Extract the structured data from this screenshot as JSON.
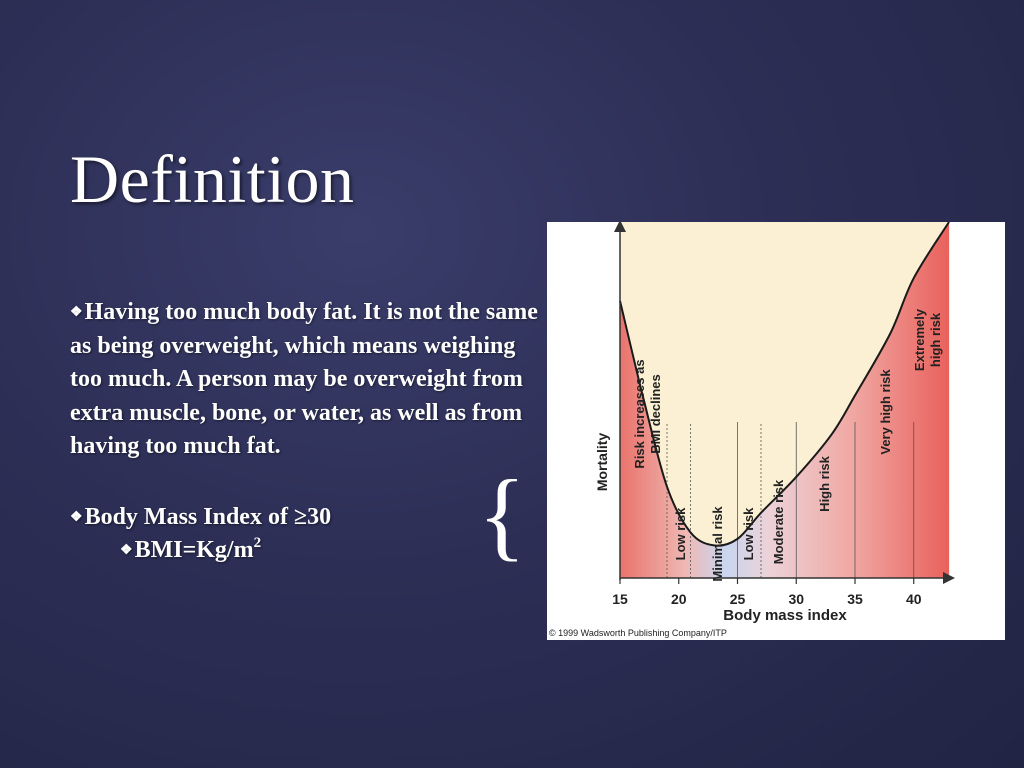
{
  "slide": {
    "title": "Definition",
    "bullets": [
      {
        "marker": "❖",
        "text": "Having too much body fat. It is not the same as being overweight, which means weighing too much. A person may be overweight from extra muscle, bone, or water, as well as from having too much fat."
      },
      {
        "marker": "❖",
        "text": "Body Mass Index of ≥30"
      },
      {
        "marker": "❖",
        "text": "BMI=Kg/m",
        "superscript": "2"
      }
    ],
    "brace": "{"
  },
  "chart_data": {
    "type": "line",
    "title": "",
    "xlabel": "Body mass index",
    "ylabel": "Mortality",
    "xticks": [
      "15",
      "20",
      "25",
      "30",
      "35",
      "40"
    ],
    "xlim": [
      15,
      43
    ],
    "zones": [
      {
        "label": "Risk increases as BMI declines",
        "from": 15,
        "to": 19
      },
      {
        "label": "Low risk",
        "from": 19,
        "to": 21
      },
      {
        "label": "Minimal risk",
        "from": 21,
        "to": 25
      },
      {
        "label": "Low risk",
        "from": 25,
        "to": 27
      },
      {
        "label": "Moderate risk",
        "from": 27,
        "to": 30
      },
      {
        "label": "High risk",
        "from": 30,
        "to": 35
      },
      {
        "label": "Very high risk",
        "from": 35,
        "to": 40
      },
      {
        "label": "Extremely high risk",
        "from": 40,
        "to": 43
      }
    ],
    "series": [
      {
        "points": [
          [
            15,
            0.85
          ],
          [
            17,
            0.55
          ],
          [
            19,
            0.28
          ],
          [
            21,
            0.14
          ],
          [
            23,
            0.1
          ],
          [
            25,
            0.12
          ],
          [
            27,
            0.2
          ],
          [
            30,
            0.31
          ],
          [
            33,
            0.44
          ],
          [
            35,
            0.56
          ],
          [
            38,
            0.75
          ],
          [
            40,
            0.92
          ],
          [
            43,
            1.2
          ]
        ]
      }
    ],
    "copyright": "© 1999 Wadsworth Publishing Company/ITP",
    "colors": {
      "panel": "#fbf0d3",
      "curve": "#1a1a1a",
      "fill_high": "#ee6b66",
      "fill_low": "#bcd3ee"
    }
  }
}
